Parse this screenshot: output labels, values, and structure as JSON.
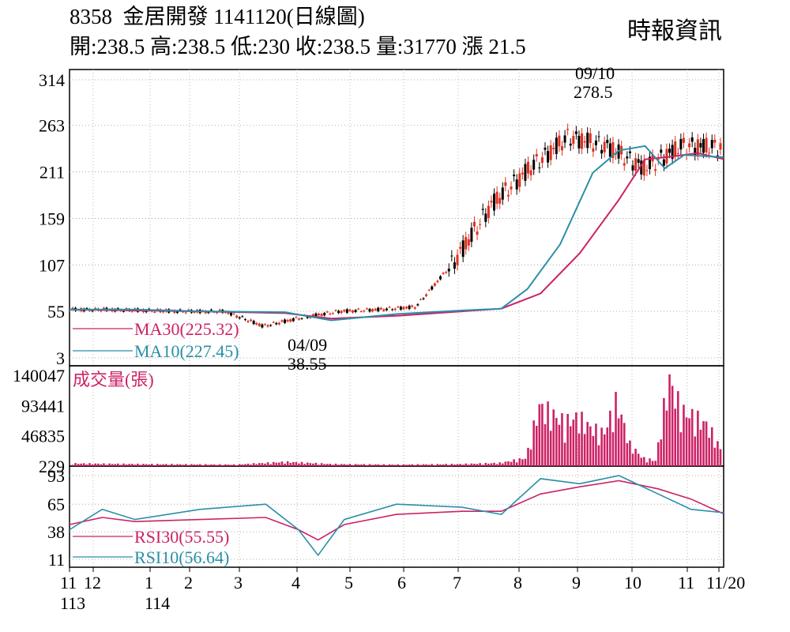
{
  "header": {
    "code": "8358",
    "name": "金居開發",
    "date": "1141120(日線圖)",
    "source": "時報資訊",
    "quote": {
      "open": "開:238.5",
      "high": "高:238.5",
      "low": "低:230",
      "close": "收:238.5",
      "volume": "量:31770",
      "change": "漲 21.5"
    }
  },
  "chart_data": [
    {
      "type": "candlestick",
      "title": "8358 金居開發 1141120(日線圖)",
      "ylim": [
        3,
        314
      ],
      "yticks": [
        "314",
        "263",
        "211",
        "159",
        "107",
        "55",
        "3"
      ],
      "yticks_values": [
        314,
        263,
        211,
        159,
        107,
        55,
        3
      ],
      "legend": [
        "MA30(225.32)",
        "MA10(227.45)"
      ],
      "legend_placement": "bottom-left",
      "annotations": [
        {
          "date": "09/10",
          "value": "278.5",
          "label": "high"
        },
        {
          "date": "04/09",
          "value": "38.55",
          "label": "low"
        }
      ],
      "price_points": [
        {
          "x": "2024-11",
          "close": 57
        },
        {
          "x": "2024-12",
          "close": 57
        },
        {
          "x": "2025-01",
          "close": 56
        },
        {
          "x": "2025-02",
          "close": 55
        },
        {
          "x": "2025-03",
          "close": 55
        },
        {
          "x": "2025-04-09",
          "close": 38.55
        },
        {
          "x": "2025-05",
          "close": 48
        },
        {
          "x": "2025-06",
          "close": 55
        },
        {
          "x": "2025-07",
          "close": 57
        },
        {
          "x": "2025-07-15",
          "close": 60
        },
        {
          "x": "2025-08-01",
          "close": 110
        },
        {
          "x": "2025-08-15",
          "close": 175
        },
        {
          "x": "2025-09-01",
          "close": 215
        },
        {
          "x": "2025-09-10",
          "close": 250,
          "high": 278.5
        },
        {
          "x": "2025-10-01",
          "close": 240
        },
        {
          "x": "2025-10-15",
          "close": 215
        },
        {
          "x": "2025-11-01",
          "close": 240
        },
        {
          "x": "2025-11-20",
          "close": 238.5
        }
      ],
      "series": [
        {
          "name": "MA30(225.32)",
          "color": "#cc2266",
          "points": [
            [
              0,
              57
            ],
            [
              0.1,
              56
            ],
            [
              0.2,
              55
            ],
            [
              0.33,
              53
            ],
            [
              0.4,
              47
            ],
            [
              0.5,
              50
            ],
            [
              0.6,
              55
            ],
            [
              0.66,
              58
            ],
            [
              0.72,
              75
            ],
            [
              0.78,
              120
            ],
            [
              0.84,
              180
            ],
            [
              0.88,
              225
            ],
            [
              0.92,
              228
            ],
            [
              0.96,
              232
            ],
            [
              1,
              225.32
            ]
          ]
        },
        {
          "name": "MA10(227.45)",
          "color": "#2a8fa8",
          "points": [
            [
              0,
              57
            ],
            [
              0.1,
              57
            ],
            [
              0.2,
              55
            ],
            [
              0.33,
              54
            ],
            [
              0.4,
              45
            ],
            [
              0.5,
              52
            ],
            [
              0.6,
              56
            ],
            [
              0.66,
              58
            ],
            [
              0.7,
              80
            ],
            [
              0.75,
              130
            ],
            [
              0.8,
              210
            ],
            [
              0.84,
              235
            ],
            [
              0.88,
              240
            ],
            [
              0.91,
              215
            ],
            [
              0.94,
              230
            ],
            [
              1,
              227.45
            ]
          ]
        }
      ]
    },
    {
      "type": "bar",
      "title": "成交量(張)",
      "ylim": [
        229,
        140047
      ],
      "yticks": [
        "140047",
        "93441",
        "46835",
        "229"
      ],
      "yticks_values": [
        140047,
        93441,
        46835,
        229
      ],
      "series": [
        {
          "name": "成交量(張)",
          "color": "#cc2266",
          "points": [
            [
              0.01,
              5000
            ],
            [
              0.1,
              4000
            ],
            [
              0.25,
              3000
            ],
            [
              0.33,
              8000
            ],
            [
              0.4,
              4000
            ],
            [
              0.5,
              3000
            ],
            [
              0.6,
              4000
            ],
            [
              0.66,
              6000
            ],
            [
              0.7,
              15000
            ],
            [
              0.72,
              110000
            ],
            [
              0.74,
              95000
            ],
            [
              0.76,
              80000
            ],
            [
              0.78,
              90000
            ],
            [
              0.8,
              70000
            ],
            [
              0.82,
              60000
            ],
            [
              0.84,
              120000
            ],
            [
              0.86,
              40000
            ],
            [
              0.88,
              15000
            ],
            [
              0.9,
              10000
            ],
            [
              0.92,
              160000
            ],
            [
              0.94,
              100000
            ],
            [
              0.96,
              90000
            ],
            [
              0.98,
              75000
            ],
            [
              1,
              31770
            ]
          ]
        }
      ]
    },
    {
      "type": "line",
      "ylim": [
        11,
        93
      ],
      "yticks": [
        "93",
        "65",
        "38",
        "11"
      ],
      "yticks_values": [
        93,
        65,
        38,
        11
      ],
      "legend": [
        "RSI30(55.55)",
        "RSI10(56.64)"
      ],
      "legend_placement": "bottom-left",
      "series": [
        {
          "name": "RSI30(55.55)",
          "color": "#cc2266",
          "points": [
            [
              0,
              45
            ],
            [
              0.05,
              52
            ],
            [
              0.1,
              48
            ],
            [
              0.2,
              50
            ],
            [
              0.3,
              52
            ],
            [
              0.35,
              40
            ],
            [
              0.38,
              30
            ],
            [
              0.42,
              45
            ],
            [
              0.5,
              55
            ],
            [
              0.6,
              58
            ],
            [
              0.66,
              58
            ],
            [
              0.72,
              75
            ],
            [
              0.78,
              82
            ],
            [
              0.84,
              88
            ],
            [
              0.9,
              80
            ],
            [
              0.95,
              70
            ],
            [
              1,
              55.55
            ]
          ]
        },
        {
          "name": "RSI10(56.64)",
          "color": "#2a8fa8",
          "points": [
            [
              0,
              40
            ],
            [
              0.05,
              60
            ],
            [
              0.1,
              50
            ],
            [
              0.2,
              60
            ],
            [
              0.3,
              65
            ],
            [
              0.35,
              40
            ],
            [
              0.38,
              15
            ],
            [
              0.42,
              50
            ],
            [
              0.5,
              65
            ],
            [
              0.6,
              62
            ],
            [
              0.66,
              55
            ],
            [
              0.72,
              90
            ],
            [
              0.78,
              85
            ],
            [
              0.84,
              93
            ],
            [
              0.9,
              75
            ],
            [
              0.95,
              60
            ],
            [
              1,
              56.64
            ]
          ]
        }
      ]
    }
  ],
  "x_axis": {
    "ticks": [
      "11",
      "12",
      "1",
      "2",
      "3",
      "4",
      "5",
      "6",
      "7",
      "8",
      "9",
      "10",
      "11",
      "11/20"
    ],
    "years": [
      "113",
      "114"
    ]
  }
}
